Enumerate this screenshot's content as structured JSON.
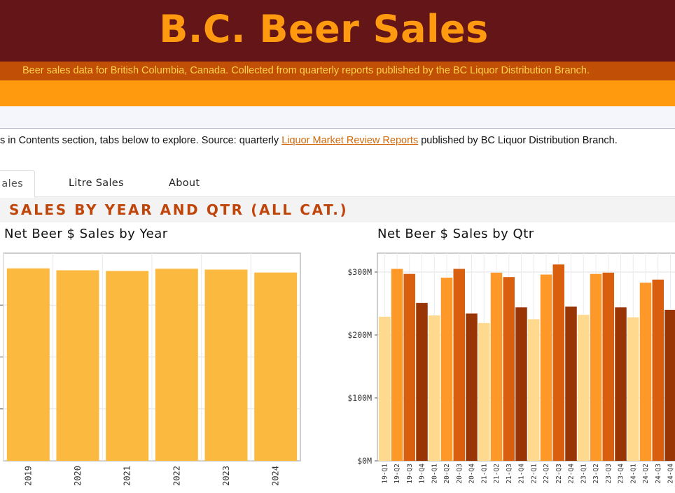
{
  "header": {
    "title": "B.C. Beer Sales",
    "subtitle": "Beer sales data for British Columbia, Canada. Collected from quarterly reports published by the BC Liquor Distribution Branch."
  },
  "intro": {
    "before": "s in Contents section, tabs below to explore. Source: quarterly ",
    "link": "Liquor Market Review Reports",
    "after": " published by BC Liquor Distribution Branch."
  },
  "tabs": [
    {
      "label": "ales",
      "active": true
    },
    {
      "label": "Litre Sales",
      "active": false
    },
    {
      "label": "About",
      "active": false
    }
  ],
  "section": {
    "title": "SALES BY YEAR AND QTR (ALL CAT.)"
  },
  "colors": {
    "header_bg": "#641517",
    "title": "#ff9a10",
    "year_bar": "#fbba3f",
    "q1": "#fed98e",
    "q2": "#fe9929",
    "q3": "#d95f0e",
    "q4": "#993404"
  },
  "chart_data": [
    {
      "type": "bar",
      "title": "Net Beer $ Sales by Year",
      "categories": [
        "2019",
        "2020",
        "2021",
        "2022",
        "2023",
        "2024"
      ],
      "values": [
        1.112,
        1.101,
        1.097,
        1.11,
        1.105,
        1.088
      ],
      "unit": "$B",
      "ylim": [
        0,
        1.2
      ],
      "grid": true
    },
    {
      "type": "bar",
      "title": "Net Beer $ Sales by Qtr",
      "categories": [
        "19-Q1",
        "19-Q2",
        "19-Q3",
        "19-Q4",
        "20-Q1",
        "20-Q2",
        "20-Q3",
        "20-Q4",
        "21-Q1",
        "21-Q2",
        "21-Q3",
        "21-Q4",
        "22-Q1",
        "22-Q2",
        "22-Q3",
        "22-Q4",
        "23-Q1",
        "23-Q2",
        "23-Q3",
        "23-Q4",
        "24-Q1",
        "24-Q2",
        "24-Q3",
        "24-Q4"
      ],
      "values": [
        229,
        305,
        297,
        251,
        231,
        291,
        305,
        234,
        219,
        299,
        292,
        244,
        225,
        296,
        312,
        245,
        232,
        297,
        299,
        244,
        228,
        283,
        288,
        240
      ],
      "unit": "$M",
      "yticks": [
        "$0M",
        "$100M",
        "$200M",
        "$300M"
      ],
      "ylim": [
        0,
        330
      ],
      "grid": true
    }
  ]
}
